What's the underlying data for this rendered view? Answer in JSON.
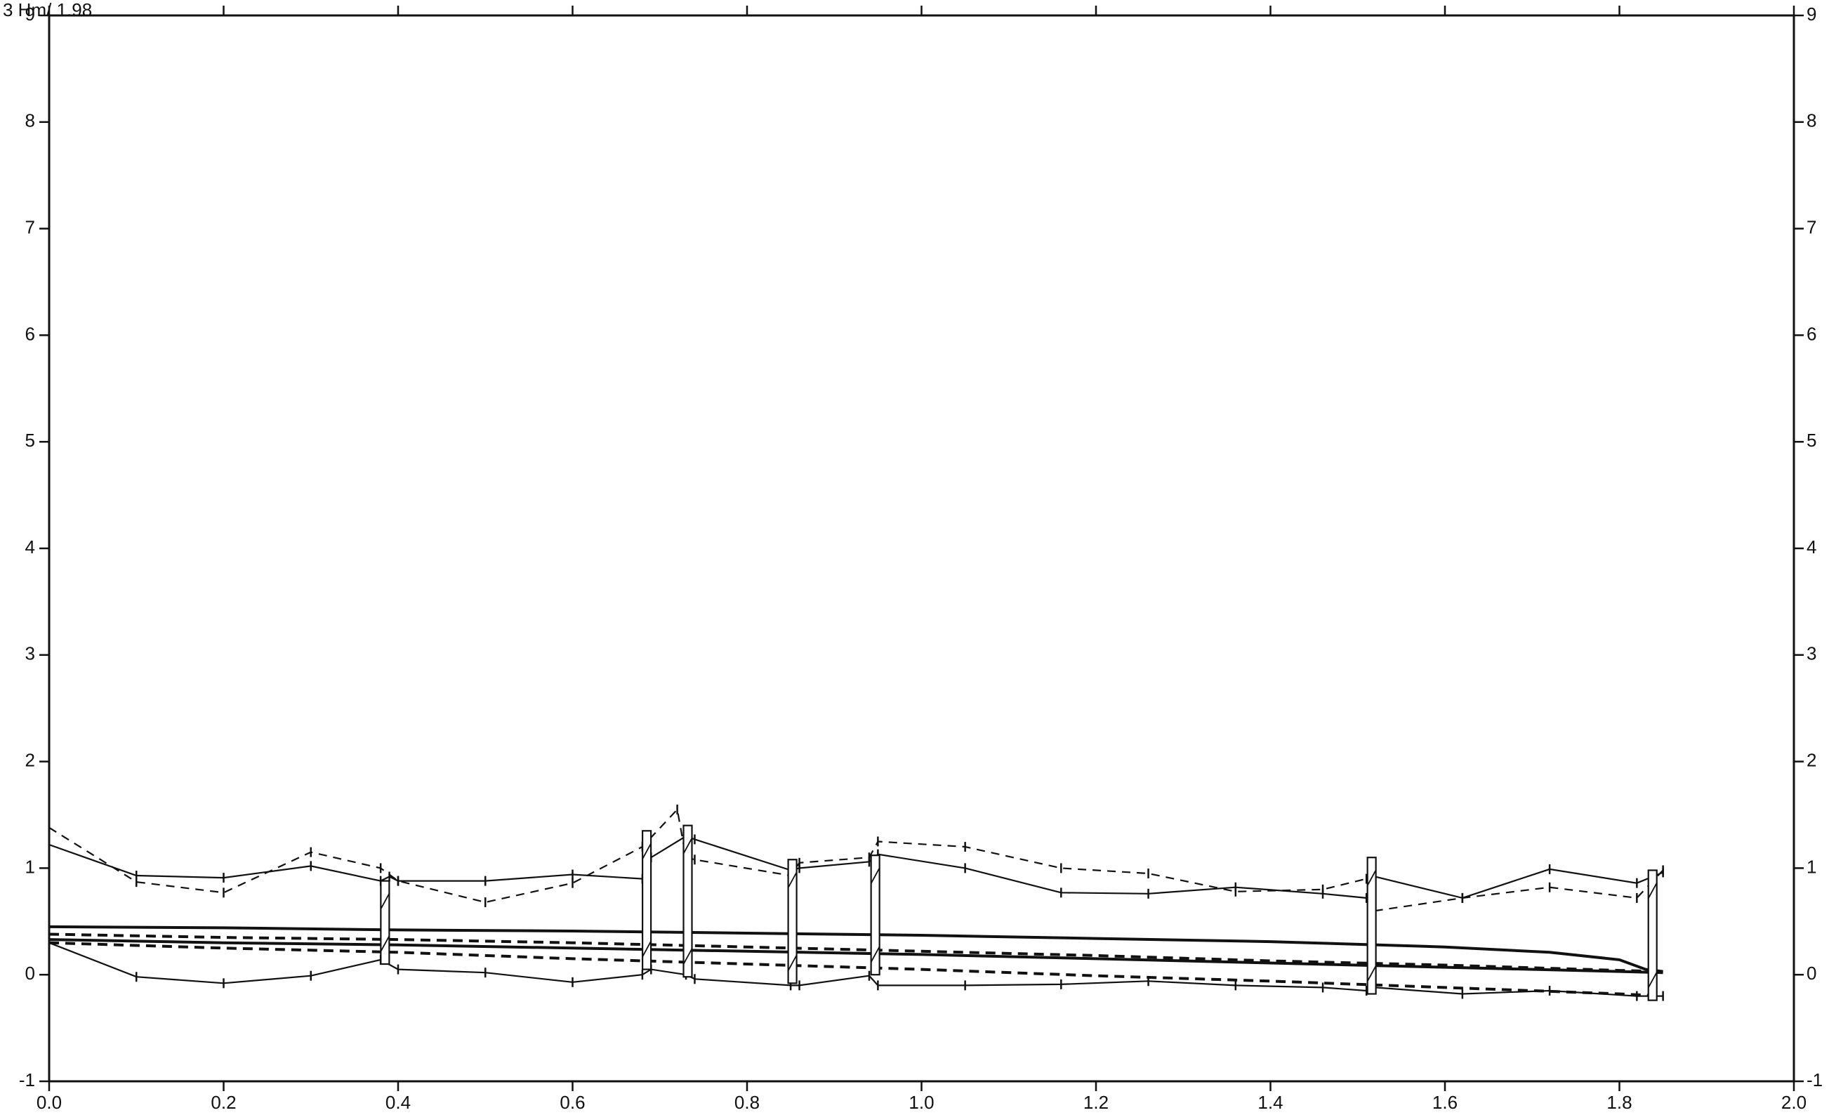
{
  "corner_label": "3 Hm/  1.98",
  "chart_data": {
    "type": "line",
    "title": "",
    "xlabel": "",
    "ylabel": "",
    "xlim": [
      0.0,
      2.0
    ],
    "ylim": [
      -1,
      9
    ],
    "grid": false,
    "x_ticks": [
      "0.0",
      "0.2",
      "0.4",
      "0.6",
      "0.8",
      "1.0",
      "1.2",
      "1.4",
      "1.6",
      "1.8",
      "2.0"
    ],
    "x_tick_values": [
      0.0,
      0.2,
      0.4,
      0.6,
      0.8,
      1.0,
      1.2,
      1.4,
      1.6,
      1.8,
      2.0
    ],
    "y_ticks_left": [
      "-1",
      "0",
      "1",
      "2",
      "3",
      "4",
      "5",
      "6",
      "7",
      "8",
      "9"
    ],
    "y_tick_values": [
      -1,
      0,
      1,
      2,
      3,
      4,
      5,
      6,
      7,
      8,
      9
    ],
    "y_ticks_right": [
      "-1",
      "0",
      "1",
      "2",
      "3",
      "4",
      "5",
      "6",
      "7",
      "8",
      "9"
    ],
    "series": [
      {
        "style": "thin-solid",
        "x": [
          0.0,
          0.1,
          0.2,
          0.3,
          0.38,
          0.39,
          0.4,
          0.5,
          0.6,
          0.68,
          0.69,
          0.73,
          0.74,
          0.85,
          0.86,
          0.94,
          0.95,
          1.05,
          1.16,
          1.26,
          1.36,
          1.46,
          1.51,
          1.52,
          1.62,
          1.72,
          1.82,
          1.85
        ],
        "y": [
          1.22,
          0.93,
          0.91,
          1.02,
          0.88,
          0.92,
          0.88,
          0.88,
          0.94,
          0.9,
          1.1,
          1.3,
          1.27,
          0.98,
          1.0,
          1.06,
          1.13,
          1.0,
          0.77,
          0.76,
          0.82,
          0.76,
          0.72,
          0.92,
          0.72,
          0.99,
          0.86,
          0.96
        ]
      },
      {
        "style": "dashed",
        "x": [
          0.0,
          0.1,
          0.2,
          0.3,
          0.38,
          0.4,
          0.5,
          0.6,
          0.68,
          0.72,
          0.73,
          0.74,
          0.85,
          0.86,
          0.94,
          0.95,
          1.05,
          1.16,
          1.26,
          1.36,
          1.46,
          1.51,
          1.52,
          1.62,
          1.72,
          1.82,
          1.85
        ],
        "y": [
          1.38,
          0.87,
          0.77,
          1.15,
          1.0,
          0.88,
          0.68,
          0.86,
          1.2,
          1.55,
          1.1,
          1.08,
          0.93,
          1.05,
          1.1,
          1.25,
          1.2,
          1.0,
          0.95,
          0.78,
          0.8,
          0.9,
          0.6,
          0.72,
          0.82,
          0.72,
          0.98
        ]
      },
      {
        "style": "thin-solid",
        "x": [
          0.0,
          0.1,
          0.2,
          0.3,
          0.38,
          0.4,
          0.5,
          0.6,
          0.68,
          0.69,
          0.73,
          0.74,
          0.85,
          0.86,
          0.94,
          0.95,
          1.05,
          1.16,
          1.26,
          1.36,
          1.46,
          1.51,
          1.52,
          1.62,
          1.72,
          1.82,
          1.85
        ],
        "y": [
          0.3,
          -0.02,
          -0.08,
          -0.01,
          0.14,
          0.05,
          0.02,
          -0.07,
          0.0,
          0.05,
          0.0,
          -0.04,
          -0.1,
          -0.1,
          -0.01,
          -0.1,
          -0.1,
          -0.09,
          -0.06,
          -0.1,
          -0.12,
          -0.15,
          -0.12,
          -0.18,
          -0.15,
          -0.2,
          -0.2
        ]
      },
      {
        "style": "thick-solid",
        "x": [
          0.0,
          0.2,
          0.4,
          0.6,
          0.8,
          1.0,
          1.2,
          1.4,
          1.6,
          1.72,
          1.8,
          1.83,
          1.85
        ],
        "y": [
          0.45,
          0.44,
          0.42,
          0.41,
          0.39,
          0.37,
          0.34,
          0.31,
          0.26,
          0.21,
          0.14,
          0.05,
          0.03
        ]
      },
      {
        "style": "thick-dashed",
        "x": [
          0.0,
          0.2,
          0.4,
          0.6,
          0.8,
          1.0,
          1.2,
          1.4,
          1.6,
          1.8,
          1.85
        ],
        "y": [
          0.38,
          0.35,
          0.33,
          0.3,
          0.26,
          0.22,
          0.18,
          0.13,
          0.09,
          0.04,
          0.03
        ]
      },
      {
        "style": "thick-solid",
        "x": [
          0.0,
          0.2,
          0.4,
          0.6,
          0.8,
          1.0,
          1.2,
          1.4,
          1.6,
          1.8,
          1.85
        ],
        "y": [
          0.33,
          0.3,
          0.28,
          0.25,
          0.22,
          0.19,
          0.15,
          0.11,
          0.07,
          0.03,
          0.02
        ]
      },
      {
        "style": "thick-dashed",
        "x": [
          0.0,
          0.2,
          0.4,
          0.6,
          0.8,
          1.0,
          1.2,
          1.4,
          1.6,
          1.8,
          1.85
        ],
        "y": [
          0.3,
          0.25,
          0.21,
          0.15,
          0.1,
          0.05,
          -0.01,
          -0.06,
          -0.12,
          -0.18,
          -0.2
        ]
      }
    ],
    "piers": [
      {
        "x": 0.385,
        "y_top": 0.88,
        "y_bottom": 0.1
      },
      {
        "x": 0.685,
        "y_top": 1.35,
        "y_bottom": 0.05
      },
      {
        "x": 0.732,
        "y_top": 1.4,
        "y_bottom": -0.02
      },
      {
        "x": 0.852,
        "y_top": 1.08,
        "y_bottom": -0.08
      },
      {
        "x": 0.947,
        "y_top": 1.12,
        "y_bottom": 0.0
      },
      {
        "x": 1.516,
        "y_top": 1.1,
        "y_bottom": -0.18
      },
      {
        "x": 1.838,
        "y_top": 0.98,
        "y_bottom": -0.24
      }
    ]
  }
}
